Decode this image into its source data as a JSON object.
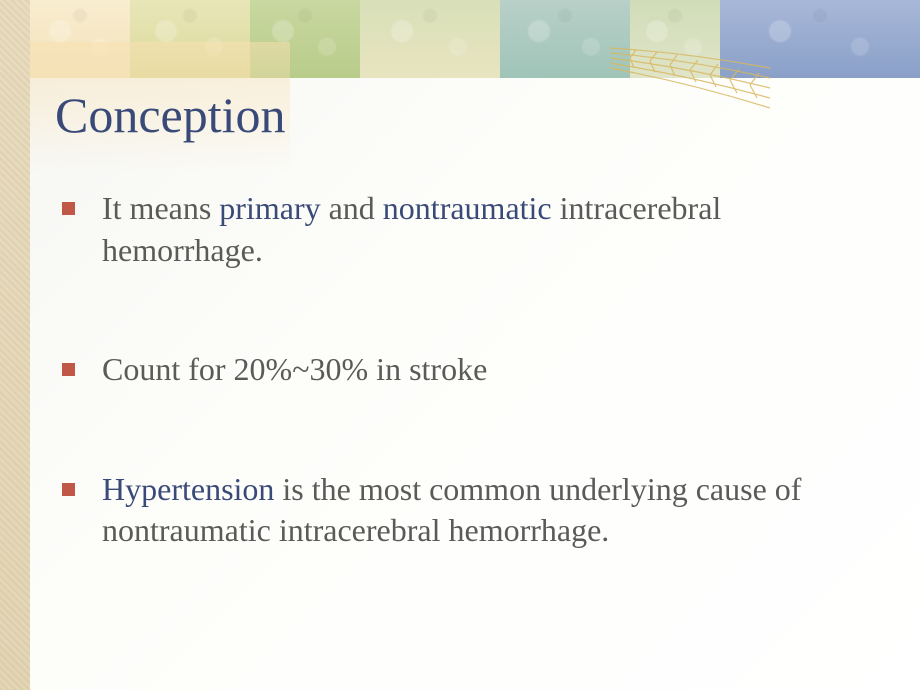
{
  "slide": {
    "title": "Conception",
    "title_color": "#3a4a78",
    "title_fontsize": 50,
    "bullet_marker_color": "#c05848",
    "body_color": "#5a5a58",
    "accent_color": "#3a4a78",
    "body_fontsize": 32,
    "bullets": [
      {
        "segments": [
          {
            "text": "It means ",
            "accent": false
          },
          {
            "text": "primary",
            "accent": true
          },
          {
            "text": " and ",
            "accent": false
          },
          {
            "text": "nontraumatic",
            "accent": true
          },
          {
            "text": " intracerebral hemorrhage.",
            "accent": false
          }
        ],
        "gap_after": 78
      },
      {
        "segments": [
          {
            "text": "Count for 20%~30% in stroke",
            "accent": false
          }
        ],
        "gap_after": 78
      },
      {
        "segments": [
          {
            "text": "Hypertension",
            "accent": true
          },
          {
            "text": " is the most common underlying cause of nontraumatic intracerebral hemorrhage.",
            "accent": false
          }
        ],
        "gap_after": 0
      }
    ]
  },
  "decor": {
    "banner_colors": [
      "#f2e2b8",
      "#dcd99a",
      "#b8cc8a",
      "#e8e4c0",
      "#a0c4b8",
      "#e0e4c8",
      "#8aa0c8"
    ],
    "left_texture_color": "#e3d6b5",
    "wheat_color": "#d8b860",
    "background_gradient": [
      "#f5f5f2",
      "#ffffff"
    ]
  }
}
